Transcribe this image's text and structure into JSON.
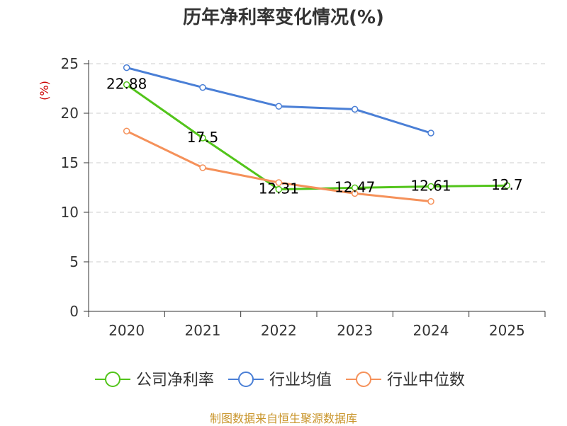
{
  "title": "历年净利率变化情况(%)",
  "source": "制图数据来自恒生聚源数据库",
  "colors": {
    "title": "#333333",
    "axis": "#333333",
    "grid": "#cccccc",
    "unit": "#cc0000",
    "source": "#c9952b"
  },
  "chart_data": {
    "type": "line",
    "title": "历年净利率变化情况(%)",
    "ylabel": "(%)",
    "xlabel": "",
    "categories": [
      "2020",
      "2021",
      "2022",
      "2023",
      "2024",
      "2025"
    ],
    "ylim": [
      0,
      25
    ],
    "yticks": [
      0,
      5,
      10,
      15,
      20,
      25
    ],
    "grid": "horizontal-dashed",
    "legend_position": "bottom",
    "series": [
      {
        "name": "公司净利率",
        "color": "#52c41a",
        "values": [
          22.88,
          17.5,
          12.31,
          12.47,
          12.61,
          12.7
        ],
        "labels": [
          "22.88",
          "17.5",
          "12.31",
          "12.47",
          "12.61",
          "12.7"
        ]
      },
      {
        "name": "行业均值",
        "color": "#4a7fd6",
        "values": [
          24.6,
          22.6,
          20.7,
          20.4,
          18.0,
          null
        ]
      },
      {
        "name": "行业中位数",
        "color": "#f5915a",
        "values": [
          18.2,
          14.5,
          13.0,
          11.9,
          11.1,
          null
        ]
      }
    ]
  }
}
